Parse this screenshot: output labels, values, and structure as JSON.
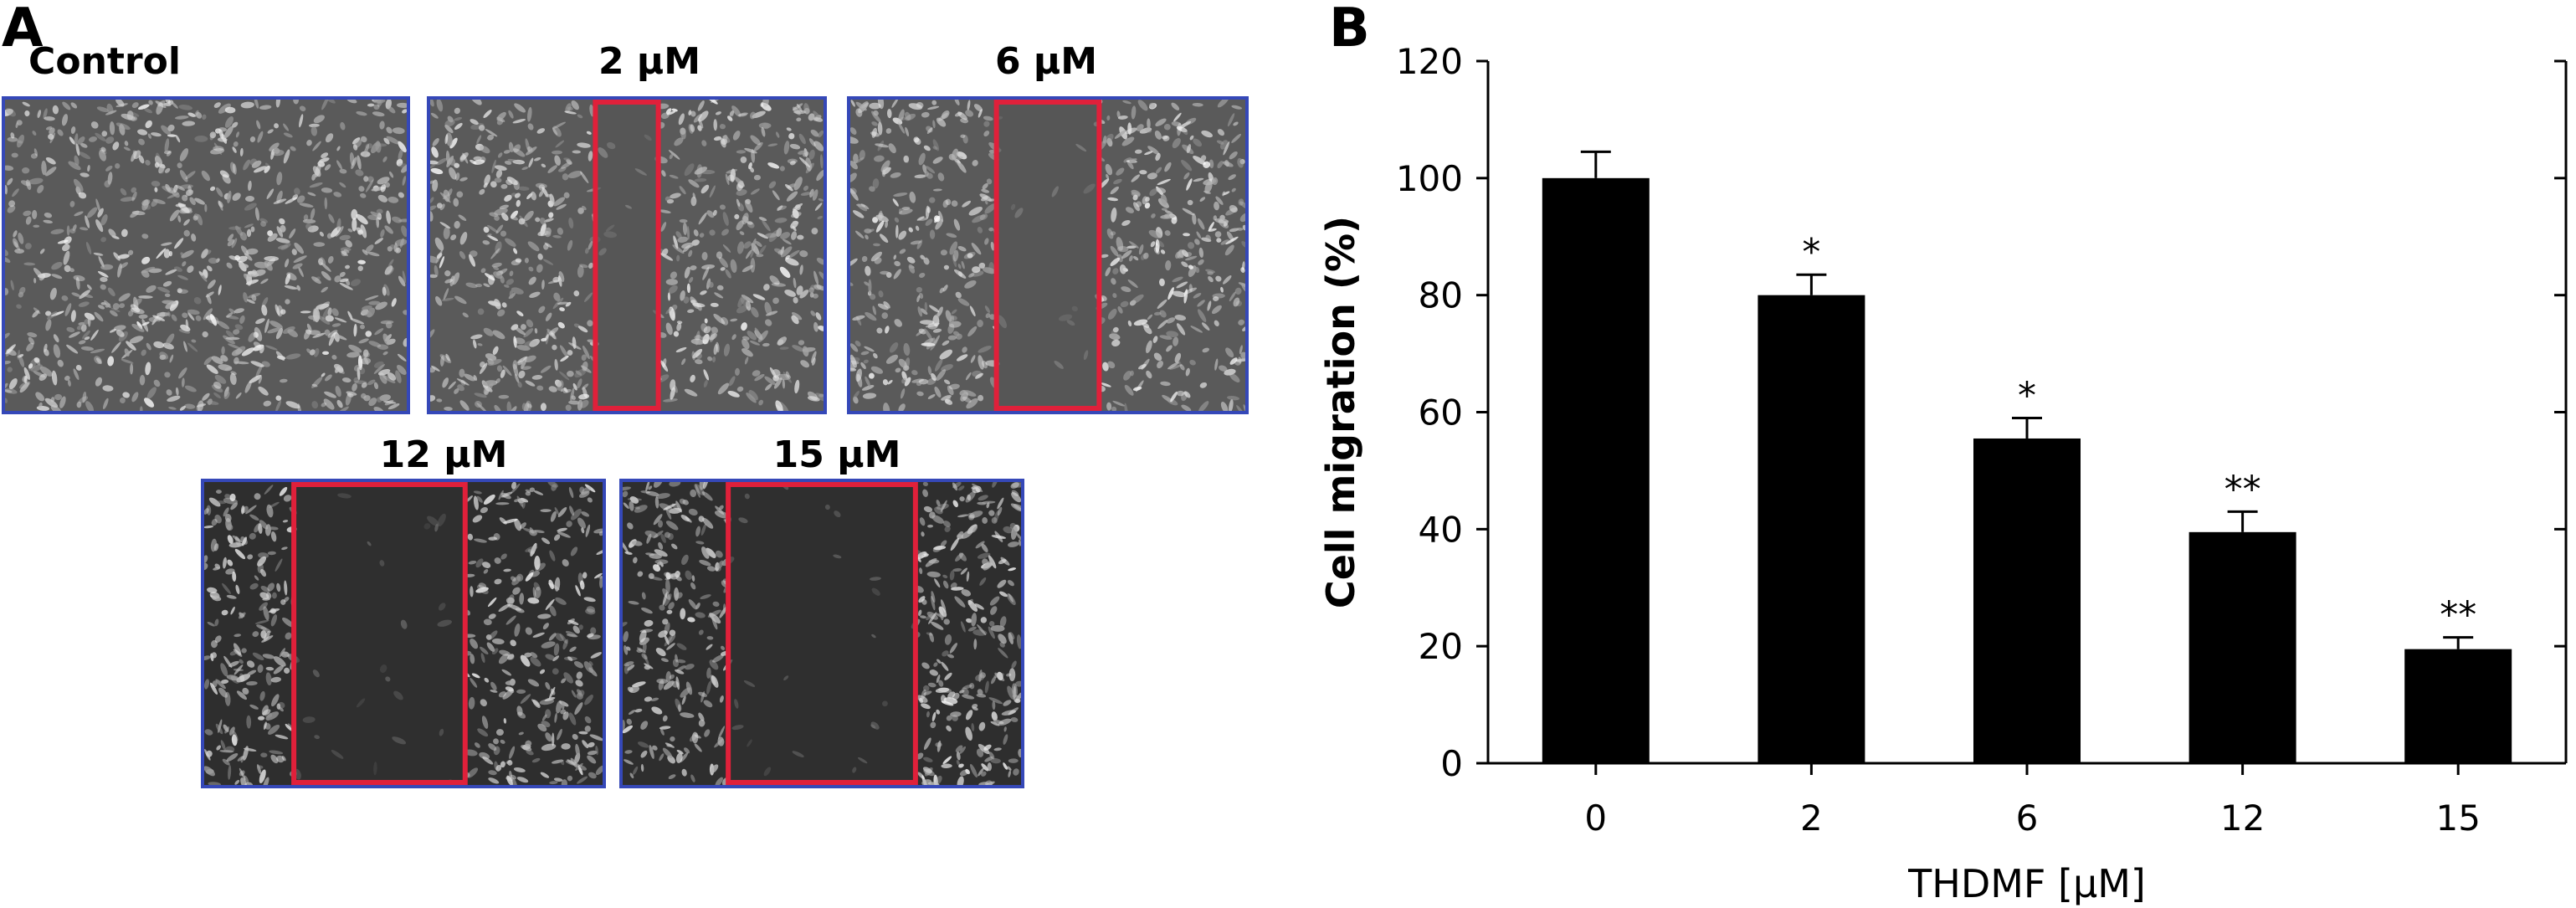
{
  "panel_a": {
    "letter": "A",
    "images": [
      {
        "label": "Control",
        "gap_fraction": 0.0
      },
      {
        "label": "2 μM",
        "gap_fraction": 0.16
      },
      {
        "label": "6 μM",
        "gap_fraction": 0.26
      },
      {
        "label": "12 μM",
        "gap_fraction": 0.43
      },
      {
        "label": "15 μM",
        "gap_fraction": 0.47
      }
    ],
    "colors": {
      "frame": "#3548b8",
      "scratch_box": "#e0203a"
    }
  },
  "panel_b": {
    "letter": "B"
  },
  "chart_data": {
    "type": "bar",
    "categories": [
      "0",
      "2",
      "6",
      "12",
      "15"
    ],
    "values": [
      100,
      80,
      55.5,
      39.5,
      19.5
    ],
    "errors": [
      4.5,
      3.5,
      3.5,
      3.5,
      2
    ],
    "significance": [
      "",
      "*",
      "*",
      "**",
      "**"
    ],
    "xlabel": "THDMF [μM]",
    "ylabel": "Cell migration (%)",
    "ylim": [
      0,
      120
    ],
    "yticks": [
      "0",
      "20",
      "40",
      "60",
      "80",
      "100",
      "120"
    ],
    "bar_color": "#000000",
    "grid": false
  }
}
